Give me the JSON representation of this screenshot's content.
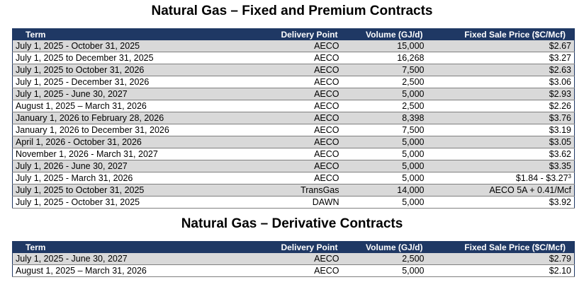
{
  "fixed": {
    "title": "Natural Gas – Fixed and Premium Contracts",
    "headers": {
      "term": "Term",
      "delivery": "Delivery Point",
      "volume": "Volume (GJ/d)",
      "price": "Fixed Sale Price ($C/Mcf)"
    },
    "rows": [
      {
        "term": "July 1, 2025 - October 31, 2025",
        "delivery": "AECO",
        "volume": "15,000",
        "price": "$2.67",
        "note": ""
      },
      {
        "term": "July 1, 2025 to December 31, 2025",
        "delivery": "AECO",
        "volume": "16,268",
        "price": "$3.27",
        "note": ""
      },
      {
        "term": "July 1, 2025 to October 31, 2026",
        "delivery": "AECO",
        "volume": "7,500",
        "price": "$2.63",
        "note": ""
      },
      {
        "term": "July 1, 2025 - December 31, 2026",
        "delivery": "AECO",
        "volume": "2,500",
        "price": "$3.06",
        "note": ""
      },
      {
        "term": "July 1, 2025 - June 30, 2027",
        "delivery": "AECO",
        "volume": "5,000",
        "price": "$2.93",
        "note": ""
      },
      {
        "term": "August 1, 2025 – March 31, 2026",
        "delivery": "AECO",
        "volume": "2,500",
        "price": "$2.26",
        "note": ""
      },
      {
        "term": "January 1, 2026 to February 28, 2026",
        "delivery": "AECO",
        "volume": "8,398",
        "price": "$3.76",
        "note": ""
      },
      {
        "term": "January 1, 2026 to December 31, 2026",
        "delivery": "AECO",
        "volume": "7,500",
        "price": "$3.19",
        "note": ""
      },
      {
        "term": "April 1, 2026 - October 31, 2026",
        "delivery": "AECO",
        "volume": "5,000",
        "price": "$3.05",
        "note": ""
      },
      {
        "term": "November 1, 2026 - March 31, 2027",
        "delivery": "AECO",
        "volume": "5,000",
        "price": "$3.62",
        "note": ""
      },
      {
        "term": "July 1, 2026 - June 30, 2027",
        "delivery": "AECO",
        "volume": "5,000",
        "price": "$3.35",
        "note": ""
      },
      {
        "term": "July 1, 2025 - March 31, 2026",
        "delivery": "AECO",
        "volume": "5,000",
        "price": "$1.84 - $3.27",
        "note": "3"
      },
      {
        "term": "July 1, 2025 to October 31, 2025",
        "delivery": "TransGas",
        "volume": "14,000",
        "price": "AECO 5A + 0.41/Mcf",
        "note": ""
      },
      {
        "term": "July 1, 2025 - October 31, 2025",
        "delivery": "DAWN",
        "volume": "5,000",
        "price": "$3.92",
        "note": ""
      }
    ]
  },
  "derivative": {
    "title": "Natural Gas – Derivative Contracts",
    "headers": {
      "term": "Term",
      "delivery": "Delivery Point",
      "volume": "Volume (GJ/d)",
      "price": "Fixed Sale Price ($C/Mcf)"
    },
    "rows": [
      {
        "term": "July 1, 2025 - June 30, 2027",
        "delivery": "AECO",
        "volume": "2,500",
        "price": "$2.79",
        "note": ""
      },
      {
        "term": "August 1, 2025 – March 31, 2026",
        "delivery": "AECO",
        "volume": "5,000",
        "price": "$2.10",
        "note": ""
      }
    ]
  }
}
